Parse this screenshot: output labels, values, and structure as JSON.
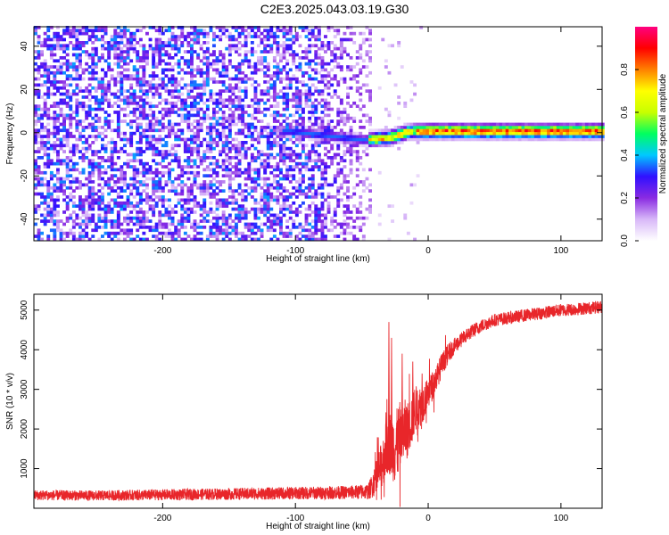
{
  "title": "C2E3.2025.043.03.19.G30",
  "chart_data": [
    {
      "type": "heatmap",
      "xlabel": "Height of straight line (km)",
      "ylabel": "Frequency (Hz)",
      "xlim": [
        -297,
        131
      ],
      "ylim": [
        -50,
        49
      ],
      "xticks": [
        -200,
        -100,
        0,
        100
      ],
      "yticks": [
        -40,
        -20,
        0,
        20,
        40
      ],
      "colorbar": {
        "label": "Normalized spectral amplitude",
        "ticks": [
          0.0,
          0.2,
          0.4,
          0.6,
          0.8
        ],
        "range": [
          0,
          1
        ],
        "colormap": [
          "#ffffff",
          "#d8b8f8",
          "#8a2be2",
          "#3010ff",
          "#00c8ff",
          "#00ff60",
          "#c8ff00",
          "#ffff00",
          "#ff8000",
          "#ff0000",
          "#ff0080"
        ]
      },
      "features": {
        "noise_region_x": [
          -297,
          -43
        ],
        "tone_center_hz": [
          {
            "x": -105,
            "f": 0
          },
          {
            "x": -50,
            "f": -4
          },
          {
            "x": -30,
            "f": -3
          },
          {
            "x": -15,
            "f": 0
          },
          {
            "x": 50,
            "f": 0
          },
          {
            "x": 131,
            "f": 0
          }
        ]
      }
    },
    {
      "type": "line",
      "xlabel": "Height of straight line (km)",
      "ylabel": "SNR (10 * v/v)",
      "xlim": [
        -297,
        131
      ],
      "ylim": [
        0,
        5400
      ],
      "xticks": [
        -200,
        -100,
        0,
        100
      ],
      "yticks": [
        1000,
        2000,
        3000,
        4000,
        5000
      ],
      "line_color": "#e8262a",
      "envelope": {
        "x": [
          -297,
          -250,
          -200,
          -150,
          -100,
          -60,
          -45,
          -40,
          -35,
          -30,
          -25,
          -20,
          -15,
          -10,
          -5,
          0,
          5,
          10,
          15,
          20,
          30,
          40,
          50,
          60,
          70,
          80,
          90,
          100,
          110,
          120,
          131
        ],
        "y": [
          330,
          320,
          340,
          360,
          380,
          400,
          420,
          700,
          1100,
          1700,
          1500,
          1900,
          2000,
          2500,
          2600,
          2900,
          3200,
          3600,
          3900,
          4100,
          4400,
          4600,
          4750,
          4800,
          4850,
          4900,
          4950,
          5000,
          5020,
          5050,
          5080
        ],
        "spread": [
          130,
          130,
          140,
          150,
          160,
          170,
          200,
          400,
          600,
          800,
          900,
          900,
          700,
          600,
          500,
          400,
          350,
          300,
          250,
          200,
          180,
          170,
          160,
          160,
          160,
          160,
          160,
          160,
          160,
          160,
          160
        ]
      },
      "spikes": [
        {
          "x": -30,
          "y": 4700
        },
        {
          "x": -28,
          "y": 4300
        },
        {
          "x": -20,
          "y": 3900
        },
        {
          "x": -12,
          "y": 3700
        },
        {
          "x": -5,
          "y": 3400
        }
      ]
    }
  ]
}
